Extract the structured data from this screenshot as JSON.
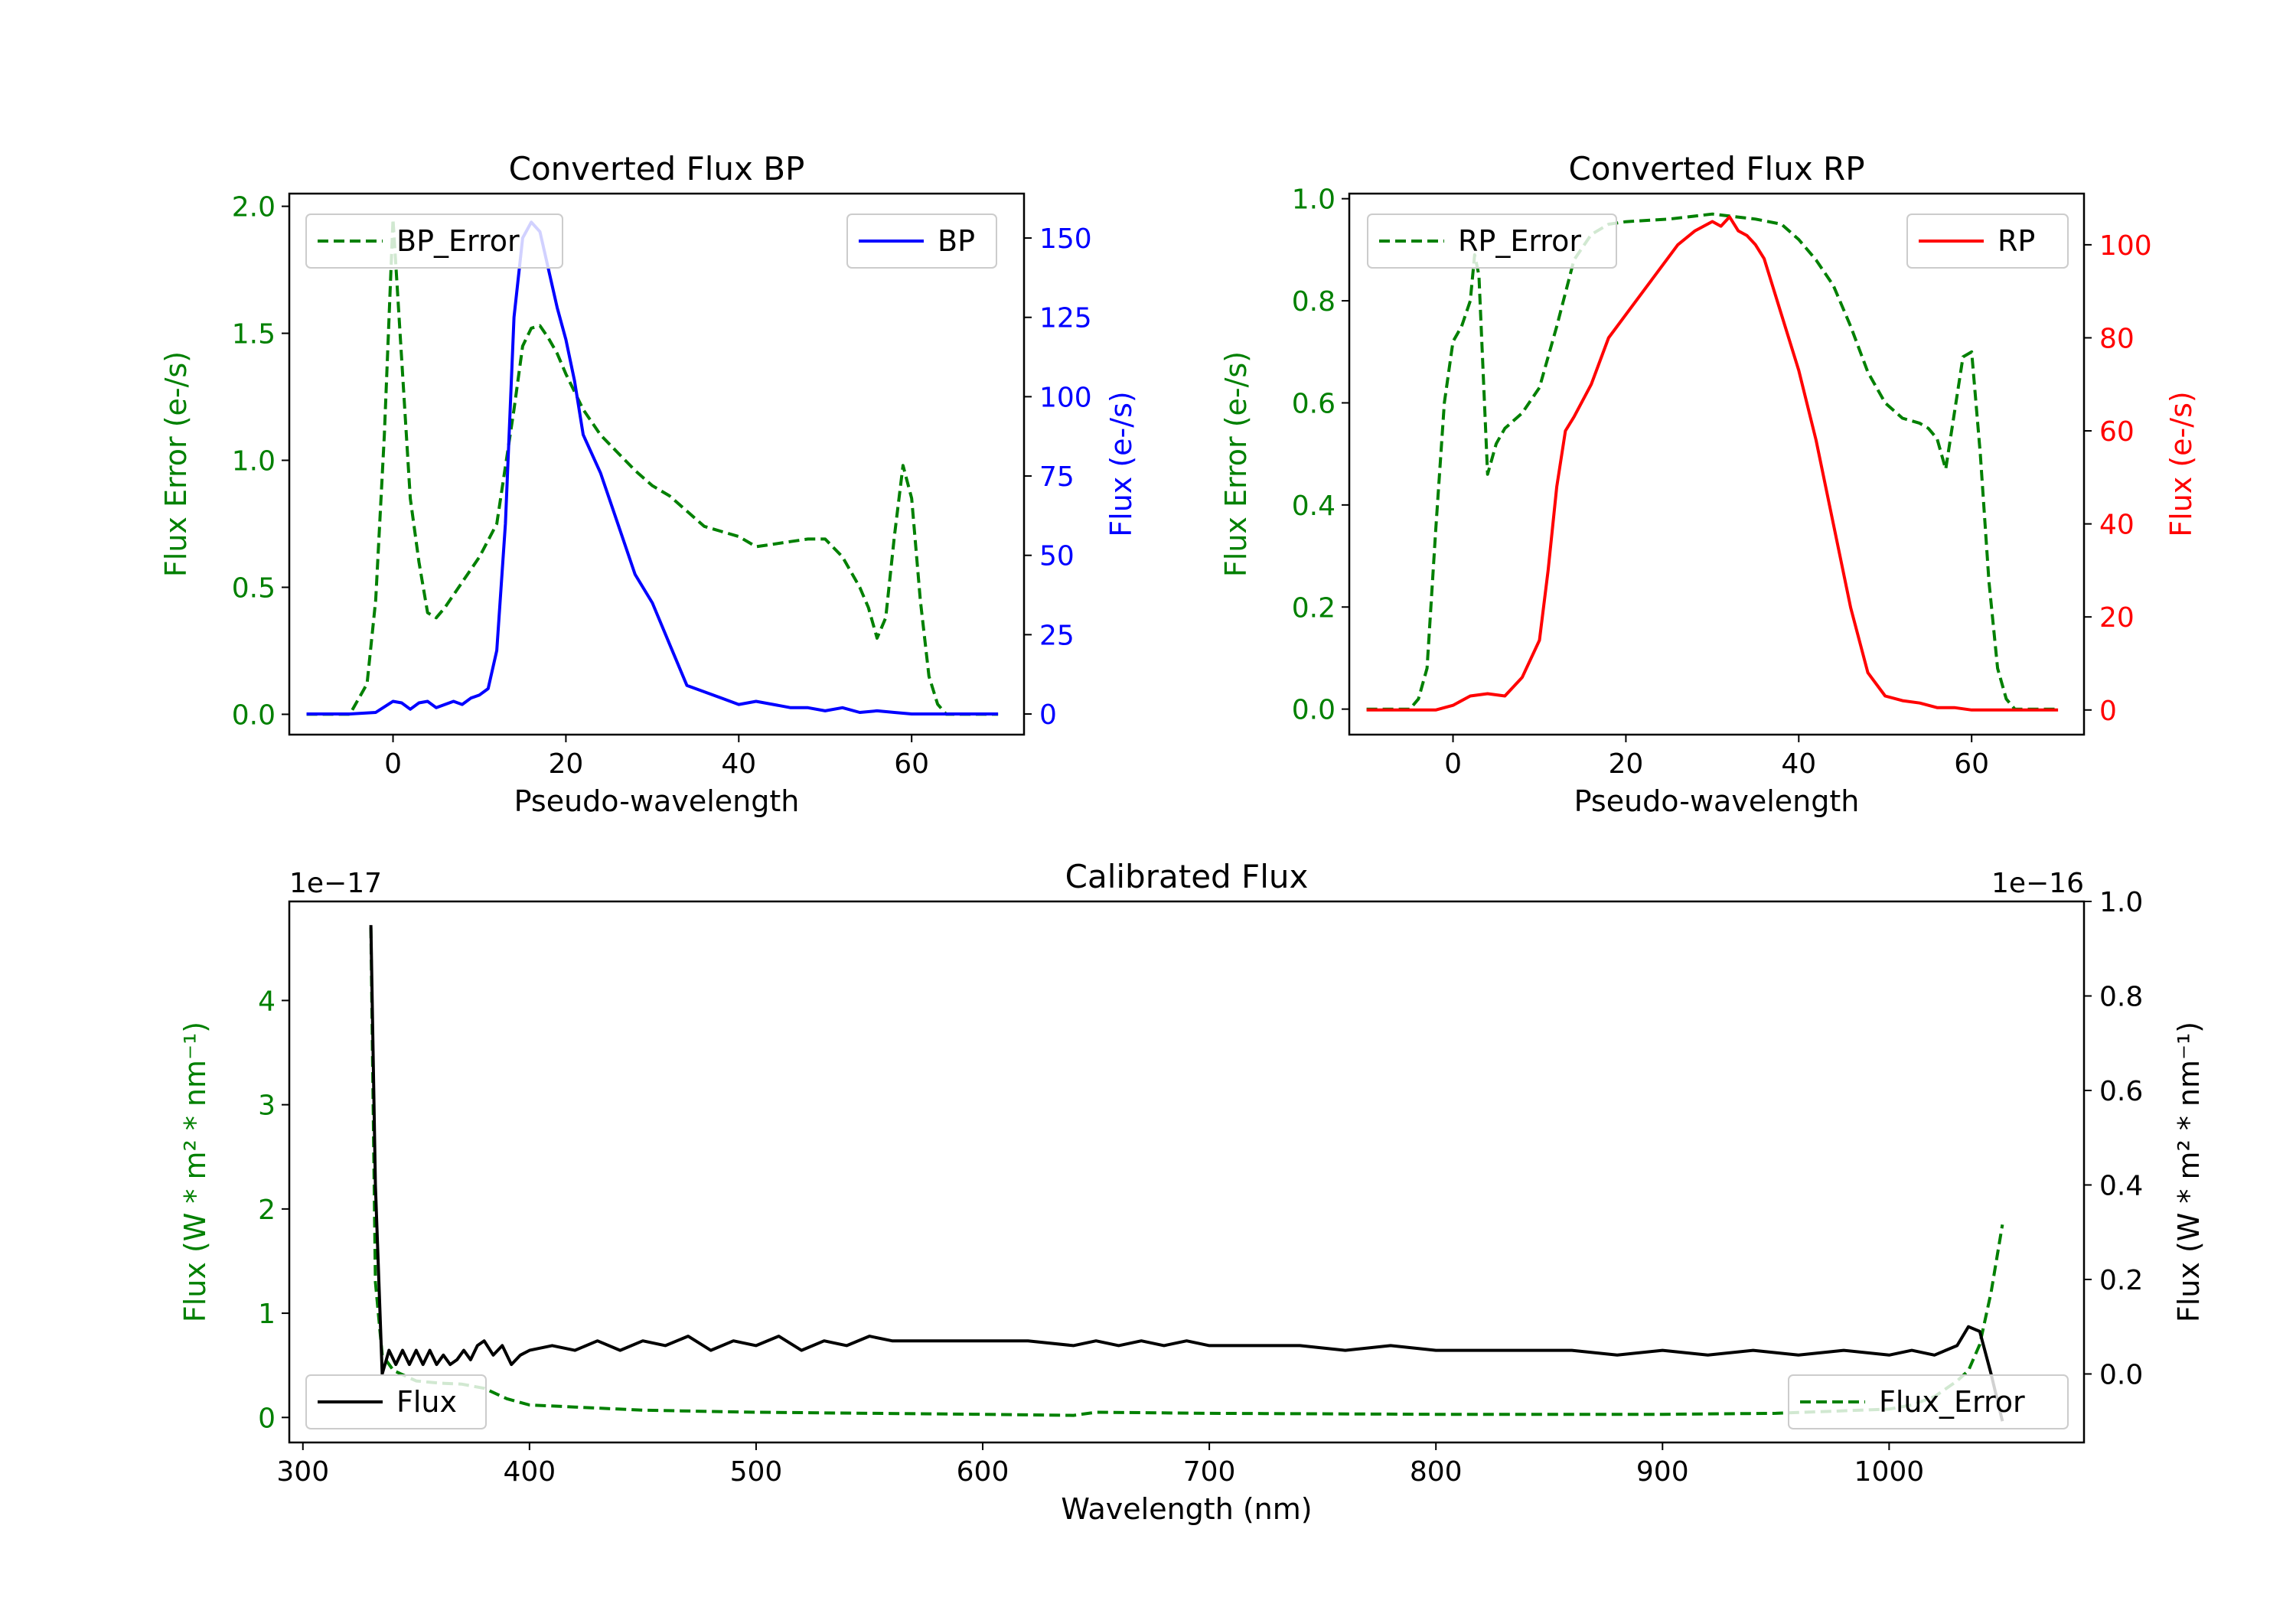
{
  "colors": {
    "error": "#008000",
    "bp": "#0000ff",
    "rp": "#ff0000",
    "flux": "#000000"
  },
  "chart_data": [
    {
      "id": "bp",
      "type": "line",
      "title": "Converted Flux BP",
      "xlabel": "Pseudo-wavelength",
      "ylabel_left": "Flux Error (e-/s)",
      "ylabel_right": "Flux (e-/s)",
      "xlim": [
        -12,
        73
      ],
      "ylim_left": [
        -0.08,
        2.05
      ],
      "ylim_right": [
        -6.5,
        164
      ],
      "x_ticks": [
        0,
        20,
        40,
        60
      ],
      "x_tick_labels": [
        "0",
        "20",
        "40",
        "60"
      ],
      "yleft_ticks": [
        0.0,
        0.5,
        1.0,
        1.5,
        2.0
      ],
      "yleft_tick_labels": [
        "0.0",
        "0.5",
        "1.0",
        "1.5",
        "2.0"
      ],
      "yright_ticks": [
        0,
        25,
        50,
        75,
        100,
        125,
        150
      ],
      "yright_tick_labels": [
        "0",
        "25",
        "50",
        "75",
        "100",
        "125",
        "150"
      ],
      "legend_left": "BP_Error",
      "legend_right": "BP",
      "series": [
        {
          "name": "BP_Error",
          "axis": "left",
          "color": "#008000",
          "style": "dashed",
          "x": [
            -10,
            -5,
            -3,
            -2,
            -1,
            0,
            1,
            2,
            3,
            4,
            5,
            6,
            8,
            10,
            12,
            14,
            15,
            16,
            17,
            18,
            19,
            20,
            22,
            24,
            26,
            28,
            30,
            32,
            34,
            36,
            38,
            40,
            42,
            44,
            46,
            48,
            50,
            52,
            54,
            55,
            56,
            57,
            58,
            59,
            60,
            61,
            62,
            63,
            64,
            65,
            70
          ],
          "y": [
            0,
            0,
            0.12,
            0.45,
            1.1,
            1.95,
            1.4,
            0.85,
            0.6,
            0.4,
            0.38,
            0.42,
            0.52,
            0.62,
            0.75,
            1.2,
            1.45,
            1.52,
            1.53,
            1.48,
            1.42,
            1.34,
            1.2,
            1.1,
            1.03,
            0.96,
            0.9,
            0.86,
            0.8,
            0.74,
            0.72,
            0.7,
            0.66,
            0.67,
            0.68,
            0.69,
            0.69,
            0.62,
            0.5,
            0.42,
            0.3,
            0.38,
            0.7,
            0.98,
            0.85,
            0.45,
            0.15,
            0.04,
            0.0,
            0.0,
            0.0
          ]
        },
        {
          "name": "BP",
          "axis": "right",
          "color": "#0000ff",
          "style": "solid",
          "x": [
            -10,
            -5,
            -2,
            0,
            1,
            2,
            3,
            4,
            5,
            6,
            7,
            8,
            9,
            10,
            11,
            12,
            13,
            14,
            15,
            16,
            17,
            18,
            19,
            20,
            21,
            22,
            24,
            26,
            28,
            30,
            32,
            34,
            36,
            38,
            40,
            42,
            44,
            46,
            48,
            50,
            52,
            54,
            56,
            58,
            60,
            65,
            70
          ],
          "y": [
            0,
            0,
            0.5,
            4,
            3.5,
            1.5,
            3.5,
            4,
            2,
            3,
            4,
            3,
            5,
            6,
            8,
            20,
            60,
            125,
            150,
            155,
            152,
            140,
            128,
            118,
            105,
            88,
            76,
            60,
            44,
            35,
            22,
            9,
            7,
            5,
            3,
            4,
            3,
            2,
            2,
            1,
            2,
            0.5,
            1,
            0.5,
            0,
            0,
            0
          ]
        }
      ]
    },
    {
      "id": "rp",
      "type": "line",
      "title": "Converted Flux RP",
      "xlabel": "Pseudo-wavelength",
      "ylabel_left": "Flux Error (e-/s)",
      "ylabel_right": "Flux (e-/s)",
      "xlim": [
        -12,
        73
      ],
      "ylim_left": [
        -0.05,
        1.01
      ],
      "ylim_right": [
        -5.3,
        111
      ],
      "x_ticks": [
        0,
        20,
        40,
        60
      ],
      "x_tick_labels": [
        "0",
        "20",
        "40",
        "60"
      ],
      "yleft_ticks": [
        0.0,
        0.2,
        0.4,
        0.6,
        0.8,
        1.0
      ],
      "yleft_tick_labels": [
        "0.0",
        "0.2",
        "0.4",
        "0.6",
        "0.8",
        "1.0"
      ],
      "yright_ticks": [
        0,
        20,
        40,
        60,
        80,
        100
      ],
      "yright_tick_labels": [
        "0",
        "20",
        "40",
        "60",
        "80",
        "100"
      ],
      "legend_left": "RP_Error",
      "legend_right": "RP",
      "series": [
        {
          "name": "RP_Error",
          "axis": "left",
          "color": "#008000",
          "style": "dashed",
          "x": [
            -10,
            -5,
            -4,
            -3,
            -2,
            -1,
            0,
            1,
            2,
            2.5,
            3,
            4,
            5,
            6,
            8,
            10,
            12,
            14,
            16,
            18,
            20,
            25,
            30,
            35,
            38,
            40,
            42,
            44,
            46,
            48,
            50,
            52,
            54,
            55,
            56,
            57,
            58,
            59,
            60,
            61,
            62,
            63,
            64,
            65,
            70
          ],
          "y": [
            0,
            0,
            0.02,
            0.08,
            0.35,
            0.6,
            0.72,
            0.75,
            0.8,
            0.89,
            0.85,
            0.46,
            0.52,
            0.55,
            0.58,
            0.63,
            0.75,
            0.88,
            0.93,
            0.95,
            0.955,
            0.96,
            0.97,
            0.96,
            0.95,
            0.92,
            0.88,
            0.83,
            0.75,
            0.66,
            0.6,
            0.57,
            0.56,
            0.55,
            0.53,
            0.47,
            0.58,
            0.69,
            0.7,
            0.5,
            0.25,
            0.08,
            0.02,
            0.0,
            0.0
          ]
        },
        {
          "name": "RP",
          "axis": "right",
          "color": "#ff0000",
          "style": "solid",
          "x": [
            -10,
            -2,
            0,
            2,
            4,
            6,
            8,
            10,
            11,
            12,
            13,
            14,
            16,
            18,
            20,
            22,
            24,
            26,
            28,
            30,
            31,
            32,
            33,
            34,
            35,
            36,
            38,
            40,
            42,
            44,
            46,
            48,
            50,
            52,
            54,
            56,
            58,
            60,
            65,
            70
          ],
          "y": [
            0,
            0,
            1,
            3,
            3.5,
            3,
            7,
            15,
            30,
            48,
            60,
            63,
            70,
            80,
            85,
            90,
            95,
            100,
            103,
            105,
            104,
            106,
            103,
            102,
            100,
            97,
            85,
            73,
            58,
            40,
            22,
            8,
            3,
            2,
            1.5,
            0.5,
            0.5,
            0,
            0,
            0
          ]
        }
      ]
    },
    {
      "id": "calibrated",
      "type": "line",
      "title": "Calibrated Flux",
      "xlabel": "Wavelength (nm)",
      "ylabel_left": "Flux (W * m² * nm⁻¹)",
      "ylabel_right": "Flux (W * m² * nm⁻¹)",
      "left_scale_label": "1e−17",
      "right_scale_label": "1e−16",
      "xlim": [
        294,
        1086
      ],
      "ylim_left": [
        -0.24,
        4.95
      ],
      "ylim_right": [
        -0.145,
        1.0
      ],
      "x_ticks": [
        300,
        400,
        500,
        600,
        700,
        800,
        900,
        1000
      ],
      "x_tick_labels": [
        "300",
        "400",
        "500",
        "600",
        "700",
        "800",
        "900",
        "1000"
      ],
      "yleft_ticks": [
        0,
        1,
        2,
        3,
        4
      ],
      "yleft_tick_labels": [
        "0",
        "1",
        "2",
        "3",
        "4"
      ],
      "yright_ticks": [
        0.0,
        0.2,
        0.4,
        0.6,
        0.8,
        1.0
      ],
      "yright_tick_labels": [
        "0.0",
        "0.2",
        "0.4",
        "0.6",
        "0.8",
        "1.0"
      ],
      "legend_left": "Flux",
      "legend_right": "Flux_Error",
      "series": [
        {
          "name": "Flux_Error",
          "axis": "left",
          "color": "#008000",
          "style": "dashed",
          "x": [
            330,
            332,
            335,
            340,
            350,
            360,
            370,
            380,
            390,
            400,
            420,
            450,
            500,
            600,
            640,
            650,
            700,
            800,
            900,
            950,
            1000,
            1010,
            1020,
            1030,
            1035,
            1040,
            1045,
            1050
          ],
          "y": [
            4.7,
            1.3,
            0.6,
            0.45,
            0.35,
            0.33,
            0.32,
            0.28,
            0.18,
            0.12,
            0.1,
            0.07,
            0.05,
            0.03,
            0.02,
            0.05,
            0.04,
            0.03,
            0.03,
            0.04,
            0.08,
            0.12,
            0.2,
            0.35,
            0.45,
            0.7,
            1.2,
            1.85
          ]
        },
        {
          "name": "Flux",
          "axis": "right",
          "color": "#000000",
          "style": "solid",
          "x": [
            330,
            332,
            335,
            338,
            341,
            344,
            347,
            350,
            353,
            356,
            359,
            362,
            365,
            368,
            371,
            374,
            377,
            380,
            384,
            388,
            392,
            396,
            400,
            410,
            420,
            430,
            440,
            450,
            460,
            470,
            480,
            490,
            500,
            510,
            520,
            530,
            540,
            550,
            560,
            580,
            600,
            620,
            640,
            650,
            660,
            670,
            680,
            690,
            700,
            720,
            740,
            760,
            780,
            800,
            820,
            840,
            860,
            880,
            900,
            920,
            940,
            960,
            980,
            1000,
            1010,
            1020,
            1030,
            1035,
            1040,
            1045,
            1050
          ],
          "y": [
            0.95,
            0.4,
            0.0,
            0.05,
            0.02,
            0.05,
            0.02,
            0.05,
            0.02,
            0.05,
            0.02,
            0.04,
            0.02,
            0.03,
            0.05,
            0.03,
            0.06,
            0.07,
            0.04,
            0.06,
            0.02,
            0.04,
            0.05,
            0.06,
            0.05,
            0.07,
            0.05,
            0.07,
            0.06,
            0.08,
            0.05,
            0.07,
            0.06,
            0.08,
            0.05,
            0.07,
            0.06,
            0.08,
            0.07,
            0.07,
            0.07,
            0.07,
            0.06,
            0.07,
            0.06,
            0.07,
            0.06,
            0.07,
            0.06,
            0.06,
            0.06,
            0.05,
            0.06,
            0.05,
            0.05,
            0.05,
            0.05,
            0.04,
            0.05,
            0.04,
            0.05,
            0.04,
            0.05,
            0.04,
            0.05,
            0.04,
            0.06,
            0.1,
            0.09,
            0.0,
            -0.1
          ]
        }
      ]
    }
  ]
}
